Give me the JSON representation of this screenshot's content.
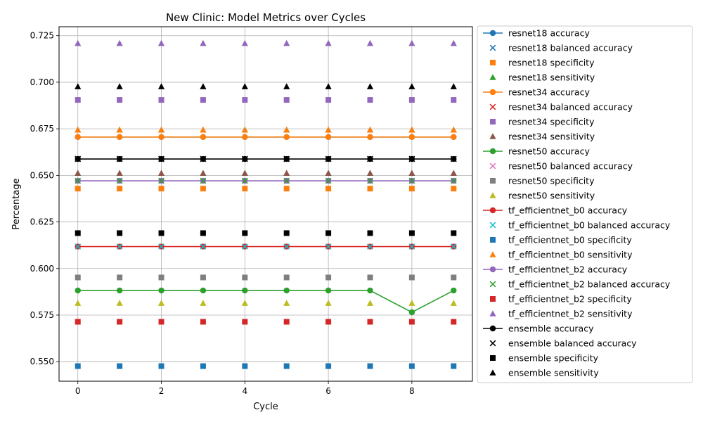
{
  "chart_data": {
    "type": "line",
    "title": "New Clinic: Model Metrics over Cycles",
    "xlabel": "Cycle",
    "ylabel": "Percentage",
    "x": [
      0,
      1,
      2,
      3,
      4,
      5,
      6,
      7,
      8,
      9
    ],
    "xlim": [
      -0.45,
      9.45
    ],
    "ylim": [
      0.5395,
      0.7298
    ],
    "xticks": [
      0,
      2,
      4,
      6,
      8
    ],
    "yticks": [
      0.55,
      0.575,
      0.6,
      0.625,
      0.65,
      0.675,
      0.7,
      0.725
    ],
    "ytick_labels": [
      "0.550",
      "0.575",
      "0.600",
      "0.625",
      "0.650",
      "0.675",
      "0.700",
      "0.725"
    ],
    "grid": true,
    "legend_position": "outside-right",
    "series": [
      {
        "name": "resnet18 accuracy",
        "marker": "circle",
        "line": true,
        "color": "#1f77b4",
        "values": [
          0.6706,
          0.6706,
          0.6706,
          0.6706,
          0.6706,
          0.6706,
          0.6706,
          0.6706,
          0.6706,
          0.6706
        ]
      },
      {
        "name": "resnet18 balanced accuracy",
        "marker": "x",
        "line": false,
        "color": "#1f77b4",
        "values": [
          0.6588,
          0.6588,
          0.6588,
          0.6588,
          0.6588,
          0.6588,
          0.6588,
          0.6588,
          0.6588,
          0.6588
        ]
      },
      {
        "name": "resnet18 specificity",
        "marker": "square",
        "line": false,
        "color": "#ff7f0e",
        "values": [
          0.6429,
          0.6429,
          0.6429,
          0.6429,
          0.6429,
          0.6429,
          0.6429,
          0.6429,
          0.6429,
          0.6429
        ]
      },
      {
        "name": "resnet18 sensitivity",
        "marker": "triangle",
        "line": false,
        "color": "#2ca02c",
        "values": [
          0.6744,
          0.6744,
          0.6744,
          0.6744,
          0.6744,
          0.6744,
          0.6744,
          0.6744,
          0.6744,
          0.6744
        ]
      },
      {
        "name": "resnet34 accuracy",
        "marker": "circle",
        "line": true,
        "color": "#ff7f0e",
        "values": [
          0.6706,
          0.6706,
          0.6706,
          0.6706,
          0.6706,
          0.6706,
          0.6706,
          0.6706,
          0.6706,
          0.6706
        ]
      },
      {
        "name": "resnet34 balanced accuracy",
        "marker": "x",
        "line": false,
        "color": "#d62728",
        "values": [
          0.6588,
          0.6588,
          0.6588,
          0.6588,
          0.6588,
          0.6588,
          0.6588,
          0.6588,
          0.6588,
          0.6588
        ]
      },
      {
        "name": "resnet34 specificity",
        "marker": "square",
        "line": false,
        "color": "#9467bd",
        "values": [
          0.6905,
          0.6905,
          0.6905,
          0.6905,
          0.6905,
          0.6905,
          0.6905,
          0.6905,
          0.6905,
          0.6905
        ]
      },
      {
        "name": "resnet34 sensitivity",
        "marker": "triangle",
        "line": false,
        "color": "#8c564b",
        "values": [
          0.6512,
          0.6512,
          0.6512,
          0.6512,
          0.6512,
          0.6512,
          0.6512,
          0.6512,
          0.6512,
          0.6512
        ]
      },
      {
        "name": "resnet50 accuracy",
        "marker": "circle",
        "line": true,
        "color": "#2ca02c",
        "values": [
          0.5882,
          0.5882,
          0.5882,
          0.5882,
          0.5882,
          0.5882,
          0.5882,
          0.5882,
          0.5765,
          0.5882
        ]
      },
      {
        "name": "resnet50 balanced accuracy",
        "marker": "x",
        "line": false,
        "color": "#e377c2",
        "values": [
          0.6588,
          0.6588,
          0.6588,
          0.6588,
          0.6588,
          0.6588,
          0.6588,
          0.6588,
          0.6588,
          0.6588
        ]
      },
      {
        "name": "resnet50 specificity",
        "marker": "square",
        "line": false,
        "color": "#7f7f7f",
        "values": [
          0.5952,
          0.5952,
          0.5952,
          0.5952,
          0.5952,
          0.5952,
          0.5952,
          0.5952,
          0.5952,
          0.5952
        ]
      },
      {
        "name": "resnet50 sensitivity",
        "marker": "triangle",
        "line": false,
        "color": "#bcbd22",
        "values": [
          0.5814,
          0.5814,
          0.5814,
          0.5814,
          0.5814,
          0.5814,
          0.5814,
          0.5814,
          0.5814,
          0.5814
        ]
      },
      {
        "name": "tf_efficientnet_b0 accuracy",
        "marker": "circle",
        "line": true,
        "color": "#d62728",
        "values": [
          0.6118,
          0.6118,
          0.6118,
          0.6118,
          0.6118,
          0.6118,
          0.6118,
          0.6118,
          0.6118,
          0.6118
        ]
      },
      {
        "name": "tf_efficientnet_b0 balanced accuracy",
        "marker": "x",
        "line": false,
        "color": "#17becf",
        "values": [
          0.6118,
          0.6118,
          0.6118,
          0.6118,
          0.6118,
          0.6118,
          0.6118,
          0.6118,
          0.6118,
          0.6118
        ]
      },
      {
        "name": "tf_efficientnet_b0 specificity",
        "marker": "square",
        "line": false,
        "color": "#1f77b4",
        "values": [
          0.5476,
          0.5476,
          0.5476,
          0.5476,
          0.5476,
          0.5476,
          0.5476,
          0.5476,
          0.5476,
          0.5476
        ]
      },
      {
        "name": "tf_efficientnet_b0 sensitivity",
        "marker": "triangle",
        "line": false,
        "color": "#ff7f0e",
        "values": [
          0.6744,
          0.6744,
          0.6744,
          0.6744,
          0.6744,
          0.6744,
          0.6744,
          0.6744,
          0.6744,
          0.6744
        ]
      },
      {
        "name": "tf_efficientnet_b2 accuracy",
        "marker": "circle",
        "line": true,
        "color": "#9467bd",
        "values": [
          0.6471,
          0.6471,
          0.6471,
          0.6471,
          0.6471,
          0.6471,
          0.6471,
          0.6471,
          0.6471,
          0.6471
        ]
      },
      {
        "name": "tf_efficientnet_b2 balanced accuracy",
        "marker": "x",
        "line": false,
        "color": "#2ca02c",
        "values": [
          0.6471,
          0.6471,
          0.6471,
          0.6471,
          0.6471,
          0.6471,
          0.6471,
          0.6471,
          0.6471,
          0.6471
        ]
      },
      {
        "name": "tf_efficientnet_b2 specificity",
        "marker": "square",
        "line": false,
        "color": "#d62728",
        "values": [
          0.5714,
          0.5714,
          0.5714,
          0.5714,
          0.5714,
          0.5714,
          0.5714,
          0.5714,
          0.5714,
          0.5714
        ]
      },
      {
        "name": "tf_efficientnet_b2 sensitivity",
        "marker": "triangle",
        "line": false,
        "color": "#9467bd",
        "values": [
          0.7209,
          0.7209,
          0.7209,
          0.7209,
          0.7209,
          0.7209,
          0.7209,
          0.7209,
          0.7209,
          0.7209
        ]
      },
      {
        "name": "ensemble accuracy",
        "marker": "circle",
        "line": true,
        "color": "#000000",
        "values": [
          0.6588,
          0.6588,
          0.6588,
          0.6588,
          0.6588,
          0.6588,
          0.6588,
          0.6588,
          0.6588,
          0.6588
        ]
      },
      {
        "name": "ensemble balanced accuracy",
        "marker": "x",
        "line": false,
        "color": "#000000",
        "values": [
          0.6588,
          0.6588,
          0.6588,
          0.6588,
          0.6588,
          0.6588,
          0.6588,
          0.6588,
          0.6588,
          0.6588
        ]
      },
      {
        "name": "ensemble specificity",
        "marker": "square",
        "line": false,
        "color": "#000000",
        "values": [
          0.619,
          0.619,
          0.619,
          0.619,
          0.619,
          0.619,
          0.619,
          0.619,
          0.619,
          0.619
        ]
      },
      {
        "name": "ensemble sensitivity",
        "marker": "triangle",
        "line": false,
        "color": "#000000",
        "values": [
          0.6977,
          0.6977,
          0.6977,
          0.6977,
          0.6977,
          0.6977,
          0.6977,
          0.6977,
          0.6977,
          0.6977
        ]
      }
    ]
  }
}
